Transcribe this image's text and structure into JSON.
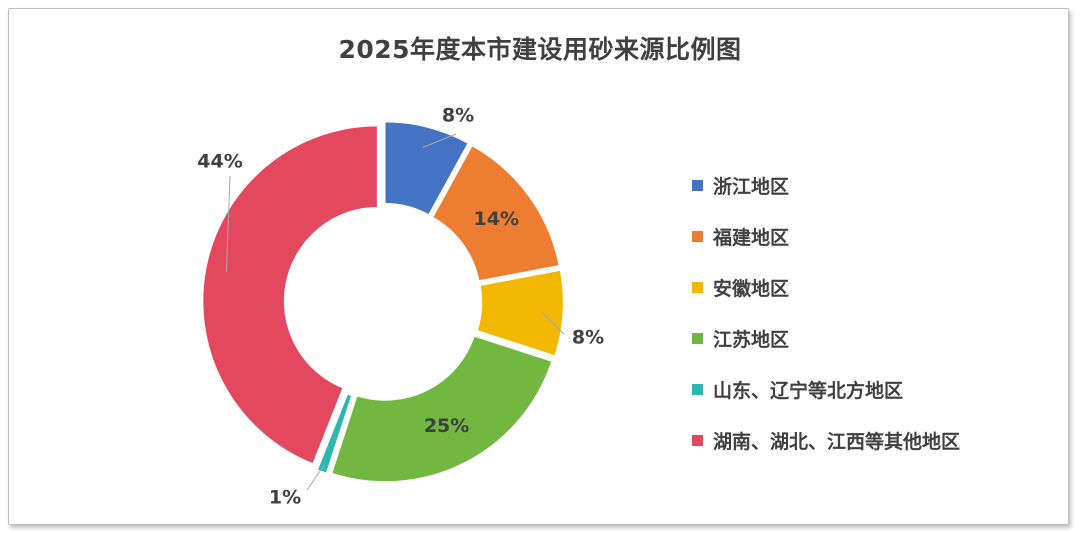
{
  "chart_data": {
    "type": "pie",
    "donut": true,
    "title": "2025年度本市建设用砂来源比例图",
    "categories": [
      "浙江地区",
      "福建地区",
      "安徽地区",
      "江苏地区",
      "山东、辽宁等北方地区",
      "湖南、湖北、江西等其他地区"
    ],
    "values": [
      8,
      14,
      8,
      25,
      1,
      44
    ],
    "labels": [
      "8%",
      "14%",
      "8%",
      "25%",
      "1%",
      "44%"
    ],
    "colors": [
      "#4472C4",
      "#ED7D31",
      "#F2B800",
      "#72B840",
      "#2AB8B0",
      "#E4485E"
    ],
    "legend_position": "right"
  }
}
